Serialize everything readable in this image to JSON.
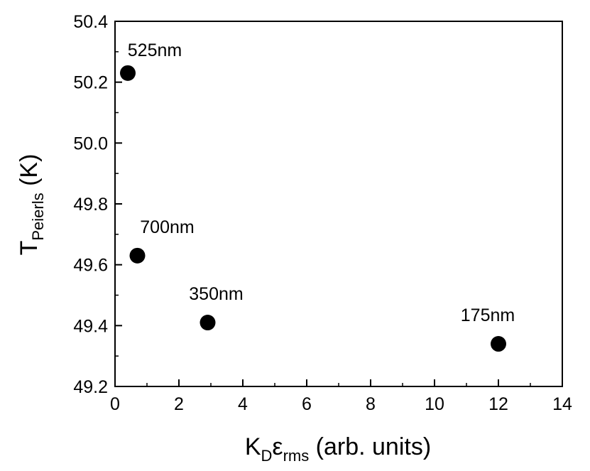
{
  "chart_data": {
    "type": "scatter",
    "xlabel": {
      "main": "K",
      "sub1": "D",
      "eps": "ε",
      "sub2": "rms",
      "rest": " (arb. units)"
    },
    "ylabel": {
      "main": "T",
      "sub": "Peierls",
      "rest": " (K)"
    },
    "xlim": [
      0,
      14
    ],
    "ylim": [
      49.2,
      50.4
    ],
    "xticks": [
      "0",
      "2",
      "4",
      "6",
      "8",
      "10",
      "12",
      "14"
    ],
    "yticks": [
      "49.2",
      "49.4",
      "49.6",
      "49.8",
      "50.0",
      "50.2",
      "50.4"
    ],
    "grid": false,
    "points": [
      {
        "x": 0.4,
        "y": 50.23,
        "label": "525nm"
      },
      {
        "x": 0.7,
        "y": 49.63,
        "label": "700nm"
      },
      {
        "x": 2.9,
        "y": 49.41,
        "label": "350nm"
      },
      {
        "x": 12.0,
        "y": 49.34,
        "label": "175nm"
      }
    ],
    "marker_color": "#000000"
  }
}
